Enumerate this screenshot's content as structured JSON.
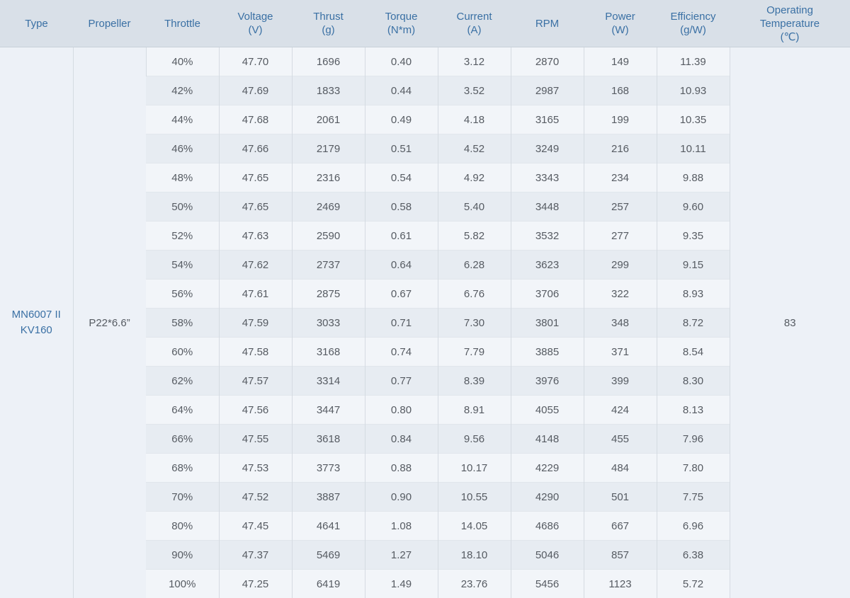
{
  "colors": {
    "header_bg": "#d9e0e8",
    "header_text": "#3a70a4",
    "row_light": "#f2f5f9",
    "row_dark": "#e7ecf2",
    "merged_bg": "#edf1f7",
    "border_v": "#d5dbe2",
    "data_text": "#565b62"
  },
  "table": {
    "columns": [
      {
        "label": "Type",
        "unit": ""
      },
      {
        "label": "Propeller",
        "unit": ""
      },
      {
        "label": "Throttle",
        "unit": ""
      },
      {
        "label": "Voltage",
        "unit": "(V)"
      },
      {
        "label": "Thrust",
        "unit": "(g)"
      },
      {
        "label": "Torque",
        "unit": "(N*m)"
      },
      {
        "label": "Current",
        "unit": "(A)"
      },
      {
        "label": "RPM",
        "unit": ""
      },
      {
        "label": "Power",
        "unit": "(W)"
      },
      {
        "label": "Efficiency",
        "unit": "(g/W)"
      },
      {
        "label": "Operating Temperature",
        "unit": "(℃)"
      }
    ],
    "type_line1": "MN6007 II",
    "type_line2": "KV160",
    "propeller": "P22*6.6”",
    "operating_temperature": "83",
    "rows": [
      {
        "throttle": "40%",
        "voltage": "47.70",
        "thrust": "1696",
        "torque": "0.40",
        "current": "3.12",
        "rpm": "2870",
        "power": "149",
        "efficiency": "11.39"
      },
      {
        "throttle": "42%",
        "voltage": "47.69",
        "thrust": "1833",
        "torque": "0.44",
        "current": "3.52",
        "rpm": "2987",
        "power": "168",
        "efficiency": "10.93"
      },
      {
        "throttle": "44%",
        "voltage": "47.68",
        "thrust": "2061",
        "torque": "0.49",
        "current": "4.18",
        "rpm": "3165",
        "power": "199",
        "efficiency": "10.35"
      },
      {
        "throttle": "46%",
        "voltage": "47.66",
        "thrust": "2179",
        "torque": "0.51",
        "current": "4.52",
        "rpm": "3249",
        "power": "216",
        "efficiency": "10.11"
      },
      {
        "throttle": "48%",
        "voltage": "47.65",
        "thrust": "2316",
        "torque": "0.54",
        "current": "4.92",
        "rpm": "3343",
        "power": "234",
        "efficiency": "9.88"
      },
      {
        "throttle": "50%",
        "voltage": "47.65",
        "thrust": "2469",
        "torque": "0.58",
        "current": "5.40",
        "rpm": "3448",
        "power": "257",
        "efficiency": "9.60"
      },
      {
        "throttle": "52%",
        "voltage": "47.63",
        "thrust": "2590",
        "torque": "0.61",
        "current": "5.82",
        "rpm": "3532",
        "power": "277",
        "efficiency": "9.35"
      },
      {
        "throttle": "54%",
        "voltage": "47.62",
        "thrust": "2737",
        "torque": "0.64",
        "current": "6.28",
        "rpm": "3623",
        "power": "299",
        "efficiency": "9.15"
      },
      {
        "throttle": "56%",
        "voltage": "47.61",
        "thrust": "2875",
        "torque": "0.67",
        "current": "6.76",
        "rpm": "3706",
        "power": "322",
        "efficiency": "8.93"
      },
      {
        "throttle": "58%",
        "voltage": "47.59",
        "thrust": "3033",
        "torque": "0.71",
        "current": "7.30",
        "rpm": "3801",
        "power": "348",
        "efficiency": "8.72"
      },
      {
        "throttle": "60%",
        "voltage": "47.58",
        "thrust": "3168",
        "torque": "0.74",
        "current": "7.79",
        "rpm": "3885",
        "power": "371",
        "efficiency": "8.54"
      },
      {
        "throttle": "62%",
        "voltage": "47.57",
        "thrust": "3314",
        "torque": "0.77",
        "current": "8.39",
        "rpm": "3976",
        "power": "399",
        "efficiency": "8.30"
      },
      {
        "throttle": "64%",
        "voltage": "47.56",
        "thrust": "3447",
        "torque": "0.80",
        "current": "8.91",
        "rpm": "4055",
        "power": "424",
        "efficiency": "8.13"
      },
      {
        "throttle": "66%",
        "voltage": "47.55",
        "thrust": "3618",
        "torque": "0.84",
        "current": "9.56",
        "rpm": "4148",
        "power": "455",
        "efficiency": "7.96"
      },
      {
        "throttle": "68%",
        "voltage": "47.53",
        "thrust": "3773",
        "torque": "0.88",
        "current": "10.17",
        "rpm": "4229",
        "power": "484",
        "efficiency": "7.80"
      },
      {
        "throttle": "70%",
        "voltage": "47.52",
        "thrust": "3887",
        "torque": "0.90",
        "current": "10.55",
        "rpm": "4290",
        "power": "501",
        "efficiency": "7.75"
      },
      {
        "throttle": "80%",
        "voltage": "47.45",
        "thrust": "4641",
        "torque": "1.08",
        "current": "14.05",
        "rpm": "4686",
        "power": "667",
        "efficiency": "6.96"
      },
      {
        "throttle": "90%",
        "voltage": "47.37",
        "thrust": "5469",
        "torque": "1.27",
        "current": "18.10",
        "rpm": "5046",
        "power": "857",
        "efficiency": "6.38"
      },
      {
        "throttle": "100%",
        "voltage": "47.25",
        "thrust": "6419",
        "torque": "1.49",
        "current": "23.76",
        "rpm": "5456",
        "power": "1123",
        "efficiency": "5.72"
      }
    ]
  }
}
